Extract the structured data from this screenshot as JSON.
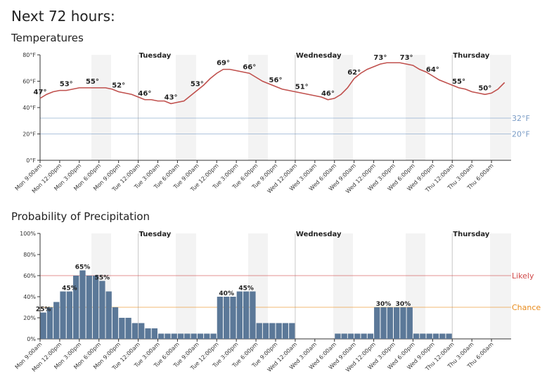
{
  "title": "Next 72 hours:",
  "chart_data": [
    {
      "type": "line",
      "title": "Temperatures",
      "categories": [
        "Mon 9:00am",
        null,
        null,
        "Mon 12:00pm",
        null,
        null,
        "Mon 3:00pm",
        null,
        null,
        "Mon 6:00pm",
        null,
        null,
        "Mon 9:00pm",
        null,
        null,
        "Tue 12:00am",
        null,
        null,
        "Tue 3:00am",
        null,
        null,
        "Tue 6:00am",
        null,
        null,
        "Tue 9:00am",
        null,
        null,
        "Tue 12:00pm",
        null,
        null,
        "Tue 3:00pm",
        null,
        null,
        "Tue 6:00pm",
        null,
        null,
        "Tue 9:00pm",
        null,
        null,
        "Wed 12:00am",
        null,
        null,
        "Wed 3:00am",
        null,
        null,
        "Wed 6:00am",
        null,
        null,
        "Wed 9:00am",
        null,
        null,
        "Wed 12:00pm",
        null,
        null,
        "Wed 3:00pm",
        null,
        null,
        "Wed 6:00pm",
        null,
        null,
        "Wed 9:00pm",
        null,
        null,
        "Thu 12:00am",
        null,
        null,
        "Thu 3:00am",
        null,
        null,
        "Thu 6:00am",
        null,
        null
      ],
      "series": [
        {
          "color": "#c0504d",
          "values": [
            47,
            50,
            52,
            53,
            53,
            54,
            55,
            55,
            55,
            55,
            55,
            54,
            52,
            51,
            50,
            48,
            46,
            46,
            45,
            45,
            43,
            44,
            45,
            49,
            53,
            57,
            62,
            66,
            69,
            69,
            68,
            67,
            66,
            63,
            60,
            58,
            56,
            54,
            53,
            52,
            51,
            50,
            49,
            48,
            46,
            47,
            50,
            55,
            62,
            66,
            69,
            71,
            73,
            74,
            74,
            74,
            73,
            72,
            69,
            67,
            64,
            61,
            59,
            57,
            55,
            54,
            52,
            51,
            50,
            51,
            54,
            59
          ],
          "value_labels": [
            "47°",
            null,
            null,
            null,
            "53°",
            null,
            null,
            null,
            "55°",
            null,
            null,
            null,
            "52°",
            null,
            null,
            null,
            "46°",
            null,
            null,
            null,
            "43°",
            null,
            null,
            null,
            "53°",
            null,
            null,
            null,
            "69°",
            null,
            null,
            null,
            "66°",
            null,
            null,
            null,
            "56°",
            null,
            null,
            null,
            "51°",
            null,
            null,
            null,
            "46°",
            null,
            null,
            null,
            "62°",
            null,
            null,
            null,
            "73°",
            null,
            null,
            null,
            "73°",
            null,
            null,
            null,
            "64°",
            null,
            null,
            null,
            "55°",
            null,
            null,
            null,
            "50°",
            null,
            null,
            null
          ]
        }
      ],
      "ylim": [
        0,
        80
      ],
      "yticks": [
        {
          "value": 0,
          "label": "0°F"
        },
        {
          "value": 20,
          "label": "20°F"
        },
        {
          "value": 40,
          "label": "40°F"
        },
        {
          "value": 60,
          "label": "60°F"
        },
        {
          "value": 80,
          "label": "80°F"
        }
      ],
      "reference_lines": [
        {
          "value": 32,
          "label": "32°F",
          "color": "#7a9cc6"
        },
        {
          "value": 20,
          "label": "20°F",
          "color": "#7a9cc6"
        }
      ],
      "day_labels": [
        {
          "label": "Tuesday",
          "category": "Tue 12:00am"
        },
        {
          "label": "Wednesday",
          "category": "Wed 12:00am"
        },
        {
          "label": "Thursday",
          "category": "Thu 12:00am"
        }
      ]
    },
    {
      "type": "bar",
      "title": "Probability of Precipitation",
      "categories": [
        "Mon 9:00am",
        null,
        null,
        "Mon 12:00pm",
        null,
        null,
        "Mon 3:00pm",
        null,
        null,
        "Mon 6:00pm",
        null,
        null,
        "Mon 9:00pm",
        null,
        null,
        "Tue 12:00am",
        null,
        null,
        "Tue 3:00am",
        null,
        null,
        "Tue 6:00am",
        null,
        null,
        "Tue 9:00am",
        null,
        null,
        "Tue 12:00pm",
        null,
        null,
        "Tue 3:00pm",
        null,
        null,
        "Tue 6:00pm",
        null,
        null,
        "Tue 9:00pm",
        null,
        null,
        "Wed 12:00am",
        null,
        null,
        "Wed 3:00am",
        null,
        null,
        "Wed 6:00am",
        null,
        null,
        "Wed 9:00am",
        null,
        null,
        "Wed 12:00pm",
        null,
        null,
        "Wed 3:00pm",
        null,
        null,
        "Wed 6:00pm",
        null,
        null,
        "Wed 9:00pm",
        null,
        null,
        "Thu 12:00am",
        null,
        null,
        "Thu 3:00am",
        null,
        null,
        "Thu 6:00am",
        null,
        null
      ],
      "series": [
        {
          "color": "#5b7898",
          "values": [
            25,
            30,
            35,
            45,
            45,
            60,
            65,
            60,
            60,
            55,
            45,
            30,
            20,
            20,
            15,
            15,
            10,
            10,
            5,
            5,
            5,
            5,
            5,
            5,
            5,
            5,
            5,
            40,
            40,
            40,
            45,
            45,
            45,
            15,
            15,
            15,
            15,
            15,
            15,
            0,
            0,
            0,
            0,
            0,
            0,
            5,
            5,
            5,
            5,
            5,
            5,
            30,
            30,
            30,
            30,
            30,
            30,
            5,
            5,
            5,
            5,
            5,
            5,
            0,
            0,
            0,
            0,
            0,
            0,
            0,
            0,
            0
          ],
          "value_labels": [
            "25%",
            null,
            null,
            null,
            "45%",
            null,
            "65%",
            null,
            null,
            "55%",
            null,
            null,
            null,
            null,
            null,
            null,
            null,
            null,
            null,
            null,
            null,
            null,
            null,
            null,
            null,
            null,
            null,
            null,
            "40%",
            null,
            null,
            "45%",
            null,
            null,
            null,
            null,
            null,
            null,
            null,
            null,
            null,
            null,
            null,
            null,
            null,
            null,
            null,
            null,
            null,
            null,
            null,
            null,
            "30%",
            null,
            null,
            "30%",
            null,
            null,
            null,
            null,
            null,
            null,
            null,
            null,
            null,
            null,
            null,
            null,
            null,
            null,
            null,
            null
          ]
        }
      ],
      "ylim": [
        0,
        100
      ],
      "yticks": [
        {
          "value": 0,
          "label": "0%"
        },
        {
          "value": 20,
          "label": "20%"
        },
        {
          "value": 40,
          "label": "40%"
        },
        {
          "value": 60,
          "label": "60%"
        },
        {
          "value": 80,
          "label": "80%"
        },
        {
          "value": 100,
          "label": "100%"
        }
      ],
      "reference_lines": [
        {
          "value": 60,
          "label": "Likely",
          "color": "#d04848"
        },
        {
          "value": 30,
          "label": "Chance",
          "color": "#e88a1a"
        }
      ],
      "day_labels": [
        {
          "label": "Tuesday",
          "category": "Tue 12:00am"
        },
        {
          "label": "Wednesday",
          "category": "Wed 12:00am"
        },
        {
          "label": "Thursday",
          "category": "Thu 12:00am"
        }
      ]
    }
  ]
}
